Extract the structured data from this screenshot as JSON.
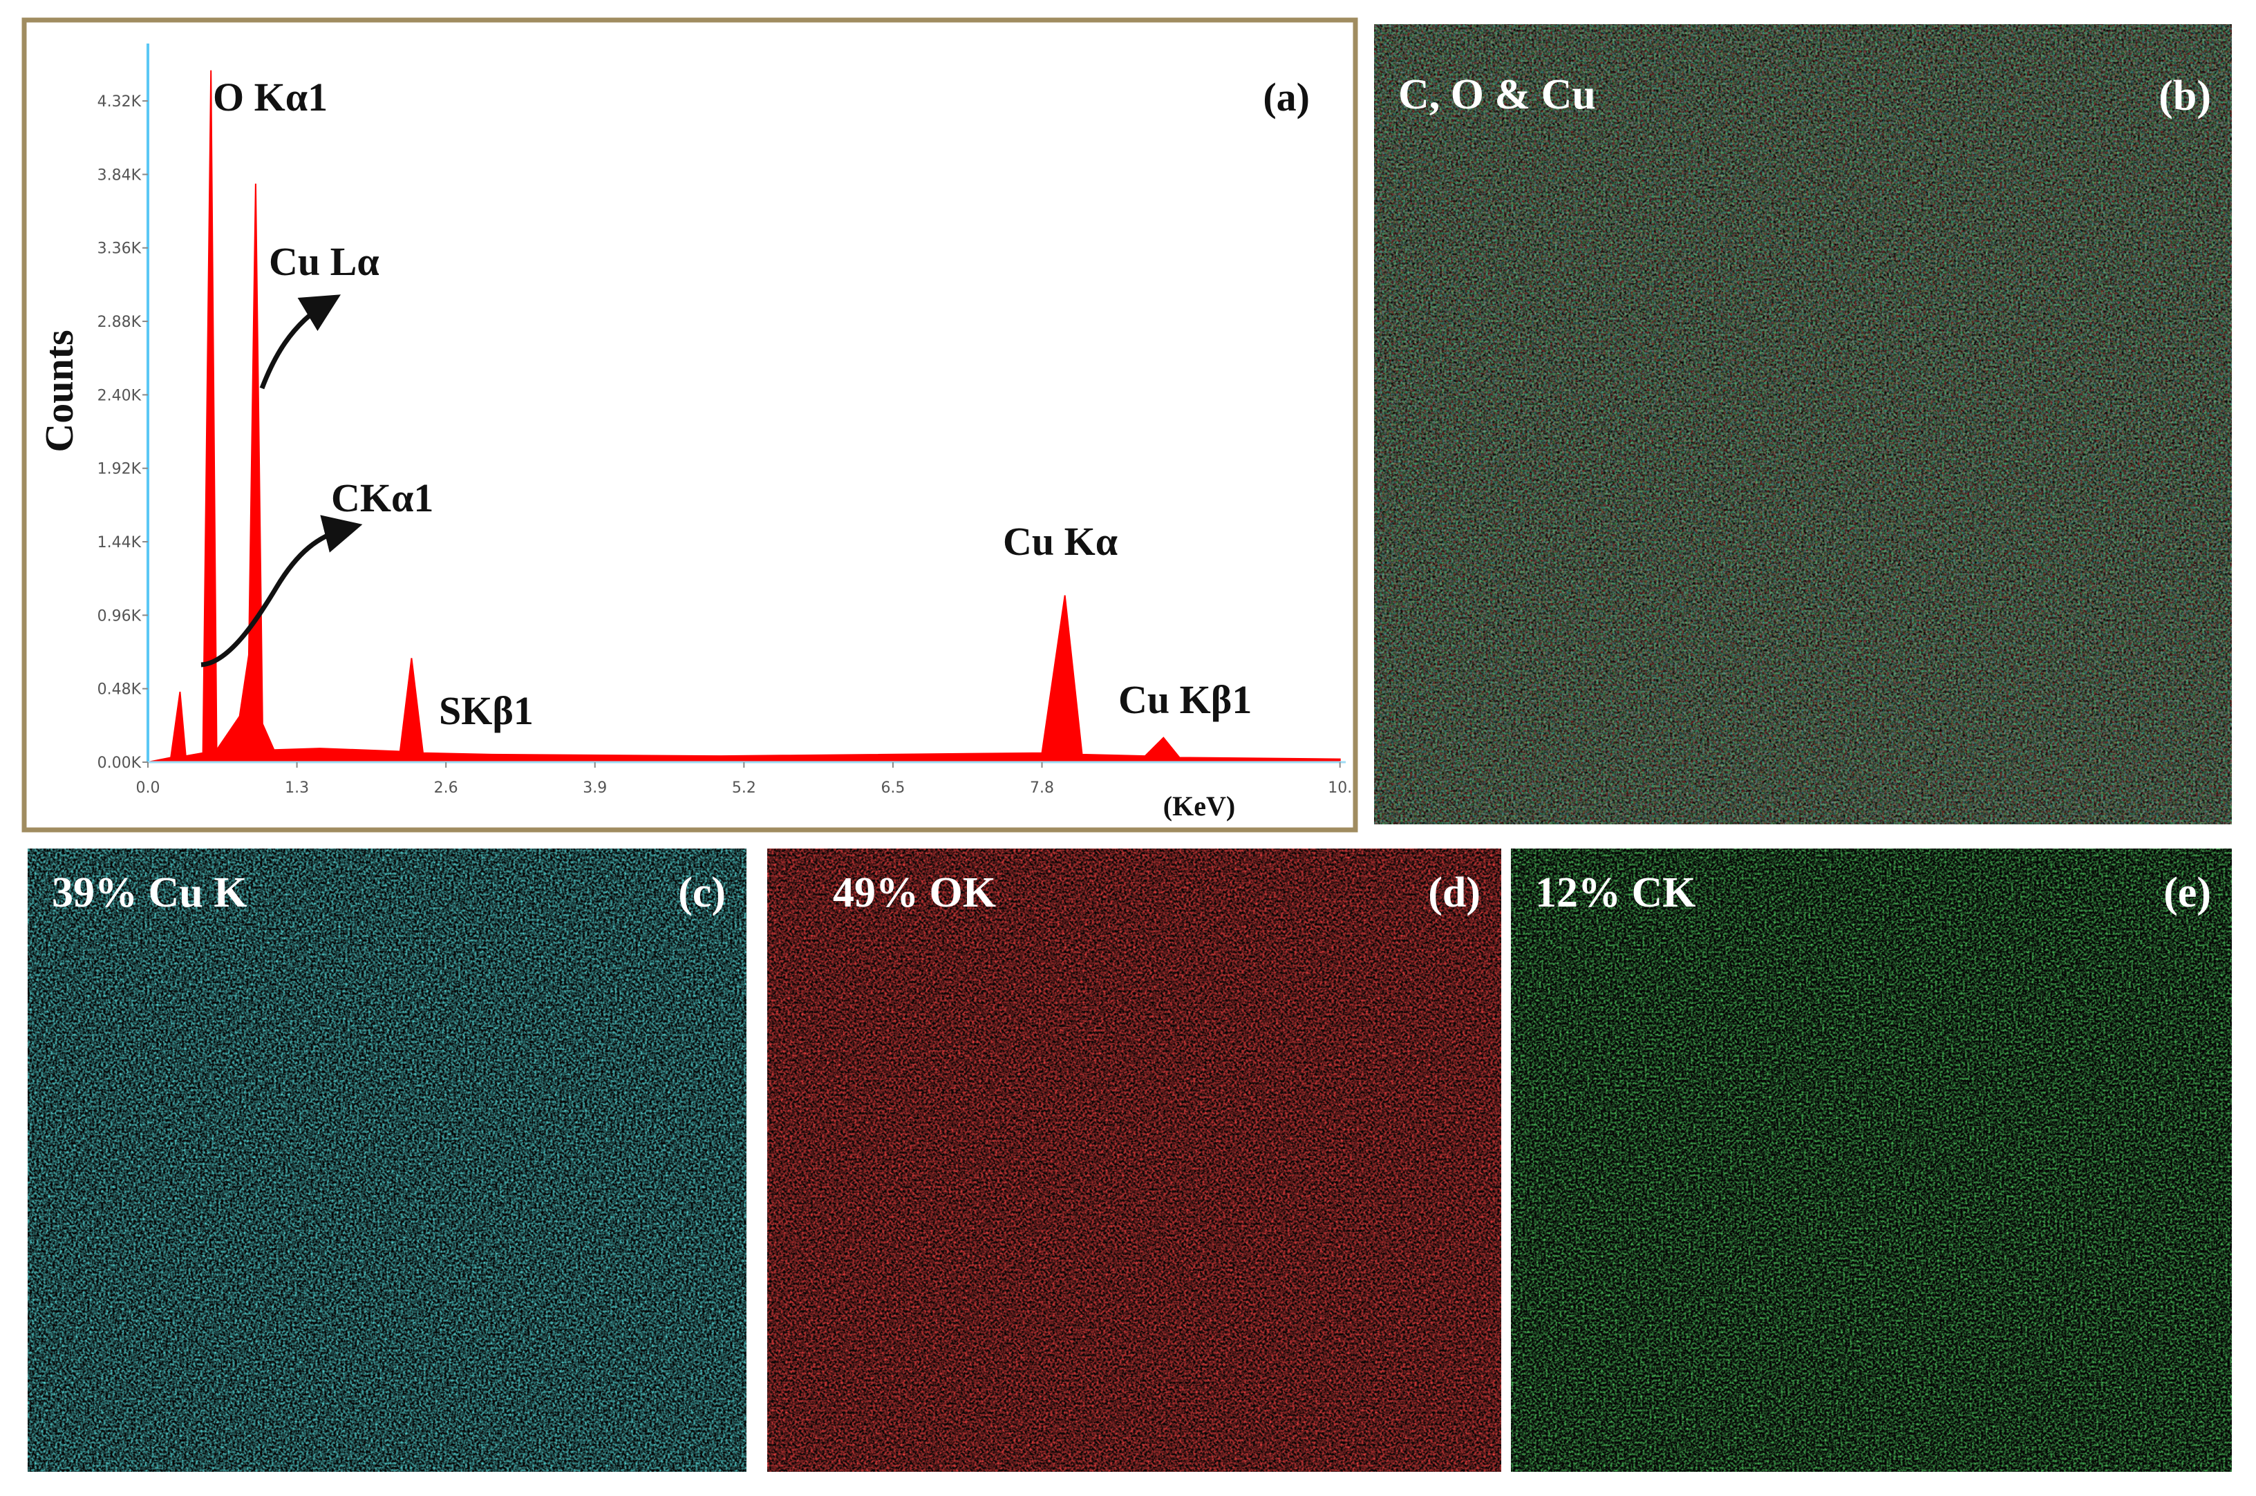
{
  "chart_data": {
    "type": "area",
    "color": "#ff0000",
    "title": "(a)",
    "ylabel": "Counts",
    "xlabel": "(KeV)",
    "x": [
      0,
      0.2,
      0.28,
      0.33,
      0.48,
      0.55,
      0.6,
      0.8,
      0.88,
      0.94,
      1.0,
      1.1,
      1.5,
      2.2,
      2.3,
      2.4,
      3,
      5,
      7.8,
      8.0,
      8.15,
      8.7,
      8.86,
      9.0,
      10.4
    ],
    "values": [
      0,
      30,
      460,
      40,
      60,
      4520,
      80,
      300,
      700,
      3780,
      250,
      80,
      90,
      70,
      680,
      60,
      50,
      40,
      60,
      1090,
      50,
      40,
      160,
      30,
      20
    ],
    "xlim": [
      0,
      10.45
    ],
    "ylim": [
      0,
      4650
    ],
    "xticks": [
      {
        "value": 0,
        "label": "0.0"
      },
      1.3,
      2.6,
      3.9,
      5.2,
      6.5,
      7.8,
      {
        "value": 10.4,
        "label": "10."
      }
    ],
    "yticks": [
      {
        "value": 0,
        "label": "0.00K"
      },
      {
        "value": 480,
        "label": "0.48K"
      },
      {
        "value": 960,
        "label": "0.96K"
      },
      {
        "value": 1440,
        "label": "1.44K"
      },
      {
        "value": 1920,
        "label": "1.92K"
      },
      {
        "value": 2400,
        "label": "2.40K"
      },
      {
        "value": 2880,
        "label": "2.88K"
      },
      {
        "value": 3360,
        "label": "3.36K"
      },
      {
        "value": 3840,
        "label": "3.84K"
      },
      {
        "value": 4320,
        "label": "4.32K"
      }
    ],
    "annotations": [
      "O Kα1",
      "Cu Lα",
      "CKα1",
      "Cu Kα",
      "SKβ1",
      "Cu Kβ1"
    ]
  },
  "panels": [
    {
      "label": "C, O & Cu",
      "tag": "(b)"
    },
    {
      "label": "39% Cu K",
      "tag": "(c)"
    },
    {
      "label": "49% OK",
      "tag": "(d)"
    },
    {
      "label": "12% CK",
      "tag": "(e)"
    }
  ]
}
